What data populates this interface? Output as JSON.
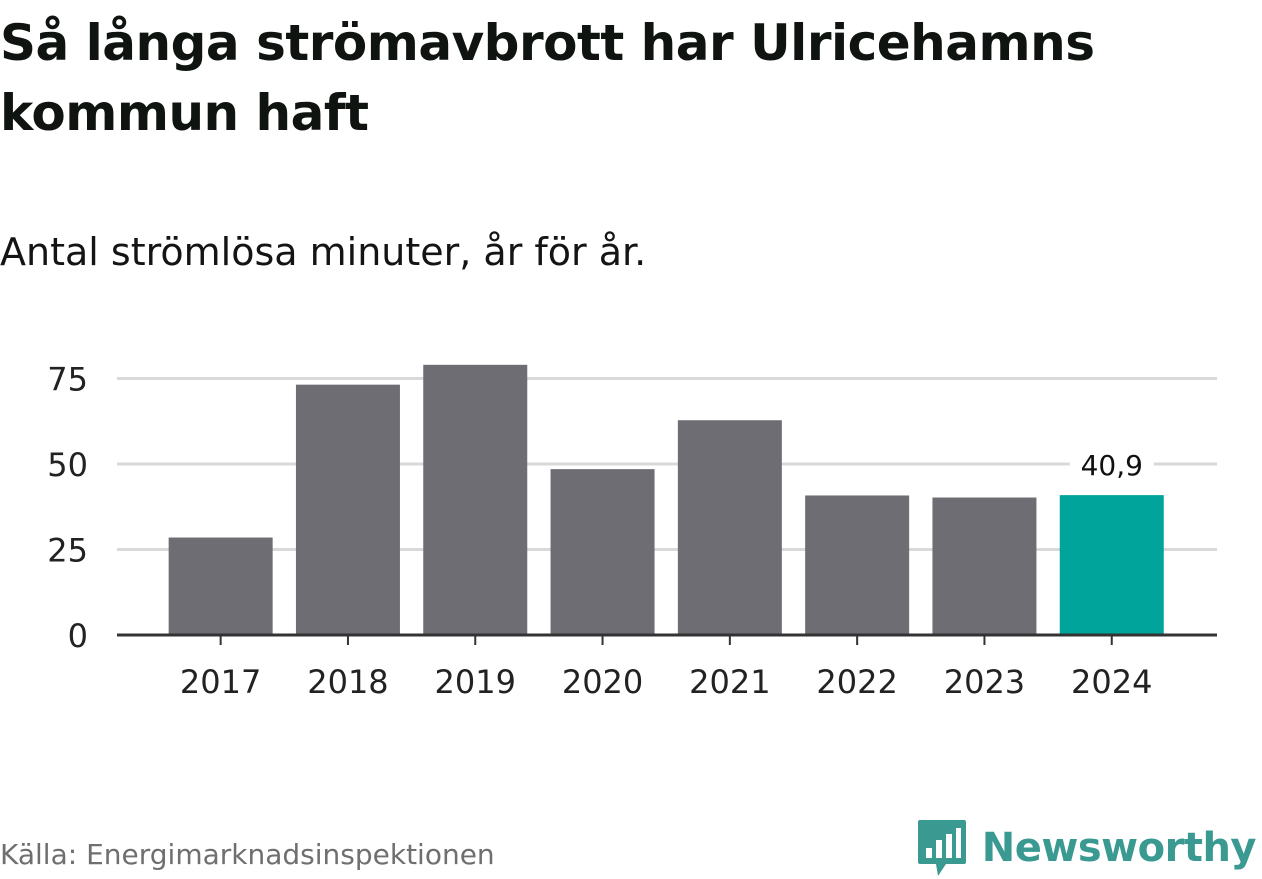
{
  "header": {
    "title": "Så långa strömavbrott har Ulricehamns kommun haft",
    "subtitle": "Antal strömlösa minuter, år för år."
  },
  "footer": {
    "source": "Källa: Energimarknadsinspektionen",
    "brand": "Newsworthy",
    "brand_icon": "newsworthy-logo-icon"
  },
  "colors": {
    "bar": "#6e6d74",
    "highlight": "#00a49a",
    "grid": "#d9d9d9",
    "axis": "#333333",
    "brand": "#3a9a92"
  },
  "chart_data": {
    "type": "bar",
    "title": "Så långa strömavbrott har Ulricehamns kommun haft",
    "subtitle": "Antal strömlösa minuter, år för år.",
    "xlabel": "",
    "ylabel": "",
    "categories": [
      "2017",
      "2018",
      "2019",
      "2020",
      "2021",
      "2022",
      "2023",
      "2024"
    ],
    "values": [
      28.5,
      73.2,
      79.0,
      48.5,
      62.8,
      40.8,
      40.2,
      40.9
    ],
    "highlight_index": 7,
    "data_labels": [
      {
        "index": 7,
        "text": "40,9"
      }
    ],
    "y_ticks": [
      0,
      25,
      50,
      75
    ],
    "y_tick_labels": [
      "0",
      "25",
      "50",
      "75"
    ],
    "ylim": [
      0,
      80
    ],
    "grid": true,
    "legend": "none"
  }
}
